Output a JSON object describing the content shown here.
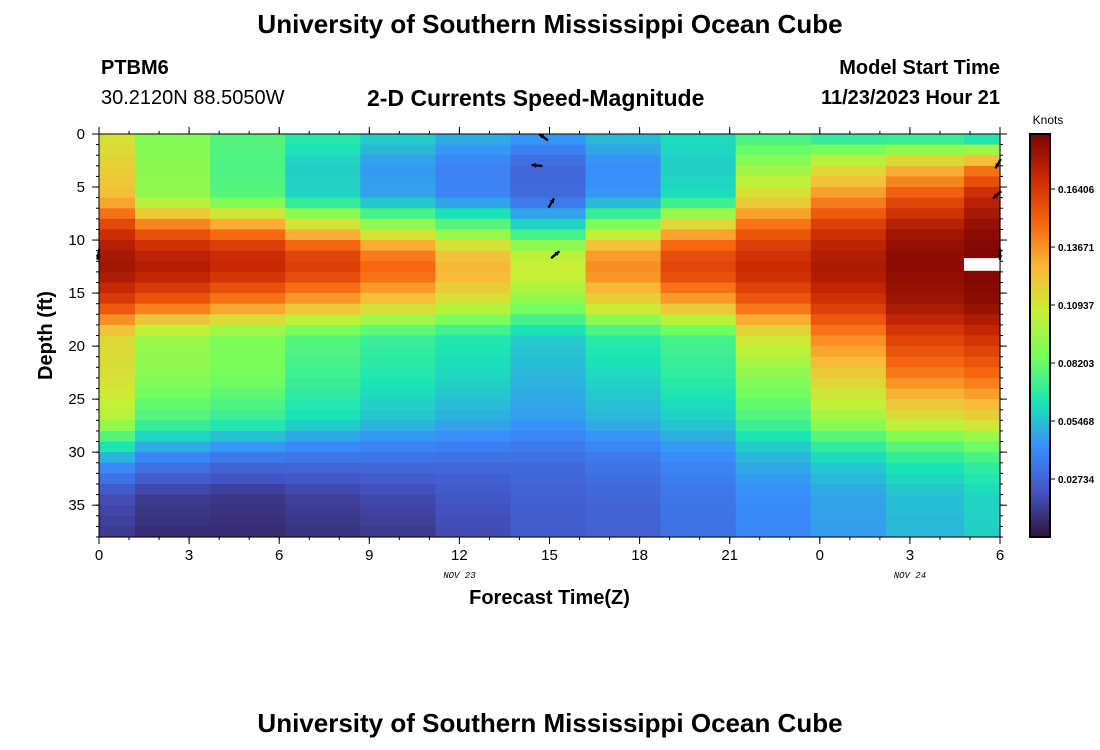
{
  "page": {
    "title": "University of Southern Mississippi Ocean Cube",
    "station": "PTBM6",
    "coords": "30.2120N  88.5050W",
    "subtitle": "2-D Currents Speed-Magnitude",
    "model_start_label": "Model Start Time",
    "model_start_value": "11/23/2023 Hour 21",
    "footer_title": "University of Southern Mississippi Ocean Cube"
  },
  "chart_data": {
    "type": "heatmap",
    "title": "2-D Currents Speed-Magnitude",
    "xlabel": "Forecast Time(Z)",
    "ylabel": "Depth (ft)",
    "x_ticks": [
      "0",
      "3",
      "6",
      "9",
      "12",
      "15",
      "18",
      "21",
      "0",
      "3",
      "6"
    ],
    "x_tick_hours": [
      0,
      3,
      6,
      9,
      12,
      15,
      18,
      21,
      24,
      27,
      30
    ],
    "date_labels": [
      {
        "text": "NOV 23",
        "hour": 12
      },
      {
        "text": "NOV 24",
        "hour": 27
      }
    ],
    "xlim": [
      0,
      30
    ],
    "y_ticks": [
      0,
      5,
      10,
      15,
      20,
      25,
      30,
      35
    ],
    "ylim": [
      0,
      38
    ],
    "colorbar": {
      "label": "Knots",
      "ticks": [
        "0.02734",
        "0.05468",
        "0.08203",
        "0.10937",
        "0.13671",
        "0.16406"
      ],
      "tick_values": [
        0.02734,
        0.05468,
        0.08203,
        0.10937,
        0.13671,
        0.16406
      ],
      "vmin": 0.0,
      "vmax": 0.19,
      "colors": [
        "#30123b",
        "#4454c4",
        "#3a8cfd",
        "#1ae4b6",
        "#72fe5e",
        "#c8ef34",
        "#faba39",
        "#f6660f",
        "#cb2a04",
        "#7a0403"
      ]
    },
    "grid": {
      "column_hours": [
        0,
        1.2,
        3.7,
        6.2,
        8.7,
        11.2,
        13.7,
        16.2,
        18.7,
        21.2,
        23.7,
        26.2,
        28.8,
        30
      ],
      "row_depth_step": 1,
      "profiles": [
        {
          "depths": [
            0,
            3,
            6,
            9,
            11,
            13,
            16,
            19,
            23,
            27,
            29,
            31,
            34,
            38
          ],
          "speeds": [
            0.11,
            0.118,
            0.125,
            0.165,
            0.178,
            0.18,
            0.16,
            0.115,
            0.112,
            0.1,
            0.07,
            0.045,
            0.02,
            0.012
          ]
        },
        {
          "depths": [
            0,
            3,
            6,
            9,
            11,
            13,
            16,
            19,
            23,
            27,
            29,
            31,
            34,
            38
          ],
          "speeds": [
            0.088,
            0.09,
            0.092,
            0.15,
            0.172,
            0.176,
            0.15,
            0.095,
            0.09,
            0.075,
            0.055,
            0.035,
            0.014,
            0.008
          ]
        },
        {
          "depths": [
            0,
            3,
            6,
            9,
            11,
            13,
            16,
            19,
            23,
            27,
            29,
            31,
            34,
            38
          ],
          "speeds": [
            0.078,
            0.075,
            0.078,
            0.14,
            0.168,
            0.17,
            0.14,
            0.088,
            0.085,
            0.07,
            0.05,
            0.03,
            0.012,
            0.008
          ]
        },
        {
          "depths": [
            0,
            3,
            6,
            9,
            11,
            13,
            16,
            19,
            23,
            27,
            29,
            31,
            34,
            38
          ],
          "speeds": [
            0.068,
            0.058,
            0.06,
            0.12,
            0.158,
            0.162,
            0.13,
            0.078,
            0.072,
            0.062,
            0.045,
            0.03,
            0.015,
            0.01
          ]
        },
        {
          "depths": [
            0,
            3,
            6,
            9,
            11,
            13,
            16,
            19,
            23,
            27,
            29,
            31,
            34,
            38
          ],
          "speeds": [
            0.06,
            0.045,
            0.048,
            0.1,
            0.14,
            0.15,
            0.12,
            0.072,
            0.065,
            0.055,
            0.042,
            0.03,
            0.018,
            0.012
          ]
        },
        {
          "depths": [
            0,
            3,
            6,
            9,
            11,
            13,
            16,
            19,
            23,
            27,
            29,
            31,
            34,
            38
          ],
          "speeds": [
            0.052,
            0.038,
            0.04,
            0.085,
            0.12,
            0.13,
            0.108,
            0.066,
            0.06,
            0.05,
            0.04,
            0.03,
            0.022,
            0.018
          ]
        },
        {
          "depths": [
            0,
            3,
            6,
            9,
            11,
            13,
            16,
            19,
            23,
            27,
            29,
            31,
            34,
            38
          ],
          "speeds": [
            0.048,
            0.028,
            0.03,
            0.065,
            0.1,
            0.108,
            0.09,
            0.058,
            0.052,
            0.046,
            0.038,
            0.03,
            0.026,
            0.024
          ]
        },
        {
          "depths": [
            0,
            3,
            6,
            9,
            11,
            13,
            16,
            19,
            23,
            27,
            29,
            31,
            34,
            38
          ],
          "speeds": [
            0.055,
            0.042,
            0.045,
            0.095,
            0.132,
            0.14,
            0.115,
            0.068,
            0.06,
            0.052,
            0.042,
            0.034,
            0.028,
            0.026
          ]
        },
        {
          "depths": [
            0,
            3,
            6,
            9,
            11,
            13,
            16,
            19,
            23,
            27,
            29,
            31,
            34,
            38
          ],
          "speeds": [
            0.062,
            0.058,
            0.062,
            0.125,
            0.155,
            0.16,
            0.13,
            0.075,
            0.068,
            0.058,
            0.048,
            0.04,
            0.034,
            0.032
          ]
        },
        {
          "depths": [
            0,
            3,
            6,
            9,
            11,
            13,
            16,
            19,
            23,
            27,
            29,
            31,
            34,
            38
          ],
          "speeds": [
            0.072,
            0.092,
            0.115,
            0.15,
            0.165,
            0.17,
            0.15,
            0.11,
            0.09,
            0.075,
            0.06,
            0.05,
            0.042,
            0.04
          ]
        },
        {
          "depths": [
            0,
            3,
            6,
            9,
            11,
            13,
            16,
            19,
            23,
            27,
            29,
            31,
            34,
            38
          ],
          "speeds": [
            0.062,
            0.11,
            0.138,
            0.165,
            0.175,
            0.178,
            0.165,
            0.14,
            0.118,
            0.095,
            0.072,
            0.058,
            0.048,
            0.046
          ]
        },
        {
          "depths": [
            0,
            3,
            6,
            9,
            11,
            13,
            16,
            19,
            23,
            27,
            29,
            31,
            34,
            38
          ],
          "speeds": [
            0.06,
            0.125,
            0.155,
            0.178,
            0.185,
            0.185,
            0.18,
            0.162,
            0.14,
            0.11,
            0.082,
            0.065,
            0.055,
            0.052
          ]
        },
        {
          "depths": [
            0,
            3,
            6,
            9,
            11,
            13,
            16,
            19,
            23,
            27,
            29,
            31,
            34,
            38
          ],
          "speeds": [
            0.05,
            0.14,
            0.172,
            0.185,
            0.188,
            0.188,
            0.185,
            0.168,
            0.145,
            0.115,
            0.088,
            0.07,
            0.06,
            0.058
          ]
        }
      ]
    },
    "vectors": [
      {
        "hour": 14.9,
        "depth": 0.5,
        "angle_deg": 215
      },
      {
        "hour": 14.7,
        "depth": 3.0,
        "angle_deg": 185
      },
      {
        "hour": 15.0,
        "depth": 6.8,
        "angle_deg": 300
      },
      {
        "hour": 15.1,
        "depth": 11.6,
        "angle_deg": 320
      },
      {
        "hour": 0.0,
        "depth": 11.0,
        "angle_deg": 100
      },
      {
        "hour": 30.0,
        "depth": 2.5,
        "angle_deg": 120
      },
      {
        "hour": 30.0,
        "depth": 5.5,
        "angle_deg": 140
      },
      {
        "hour": 30.0,
        "depth": 11.0,
        "angle_deg": 90
      }
    ]
  }
}
